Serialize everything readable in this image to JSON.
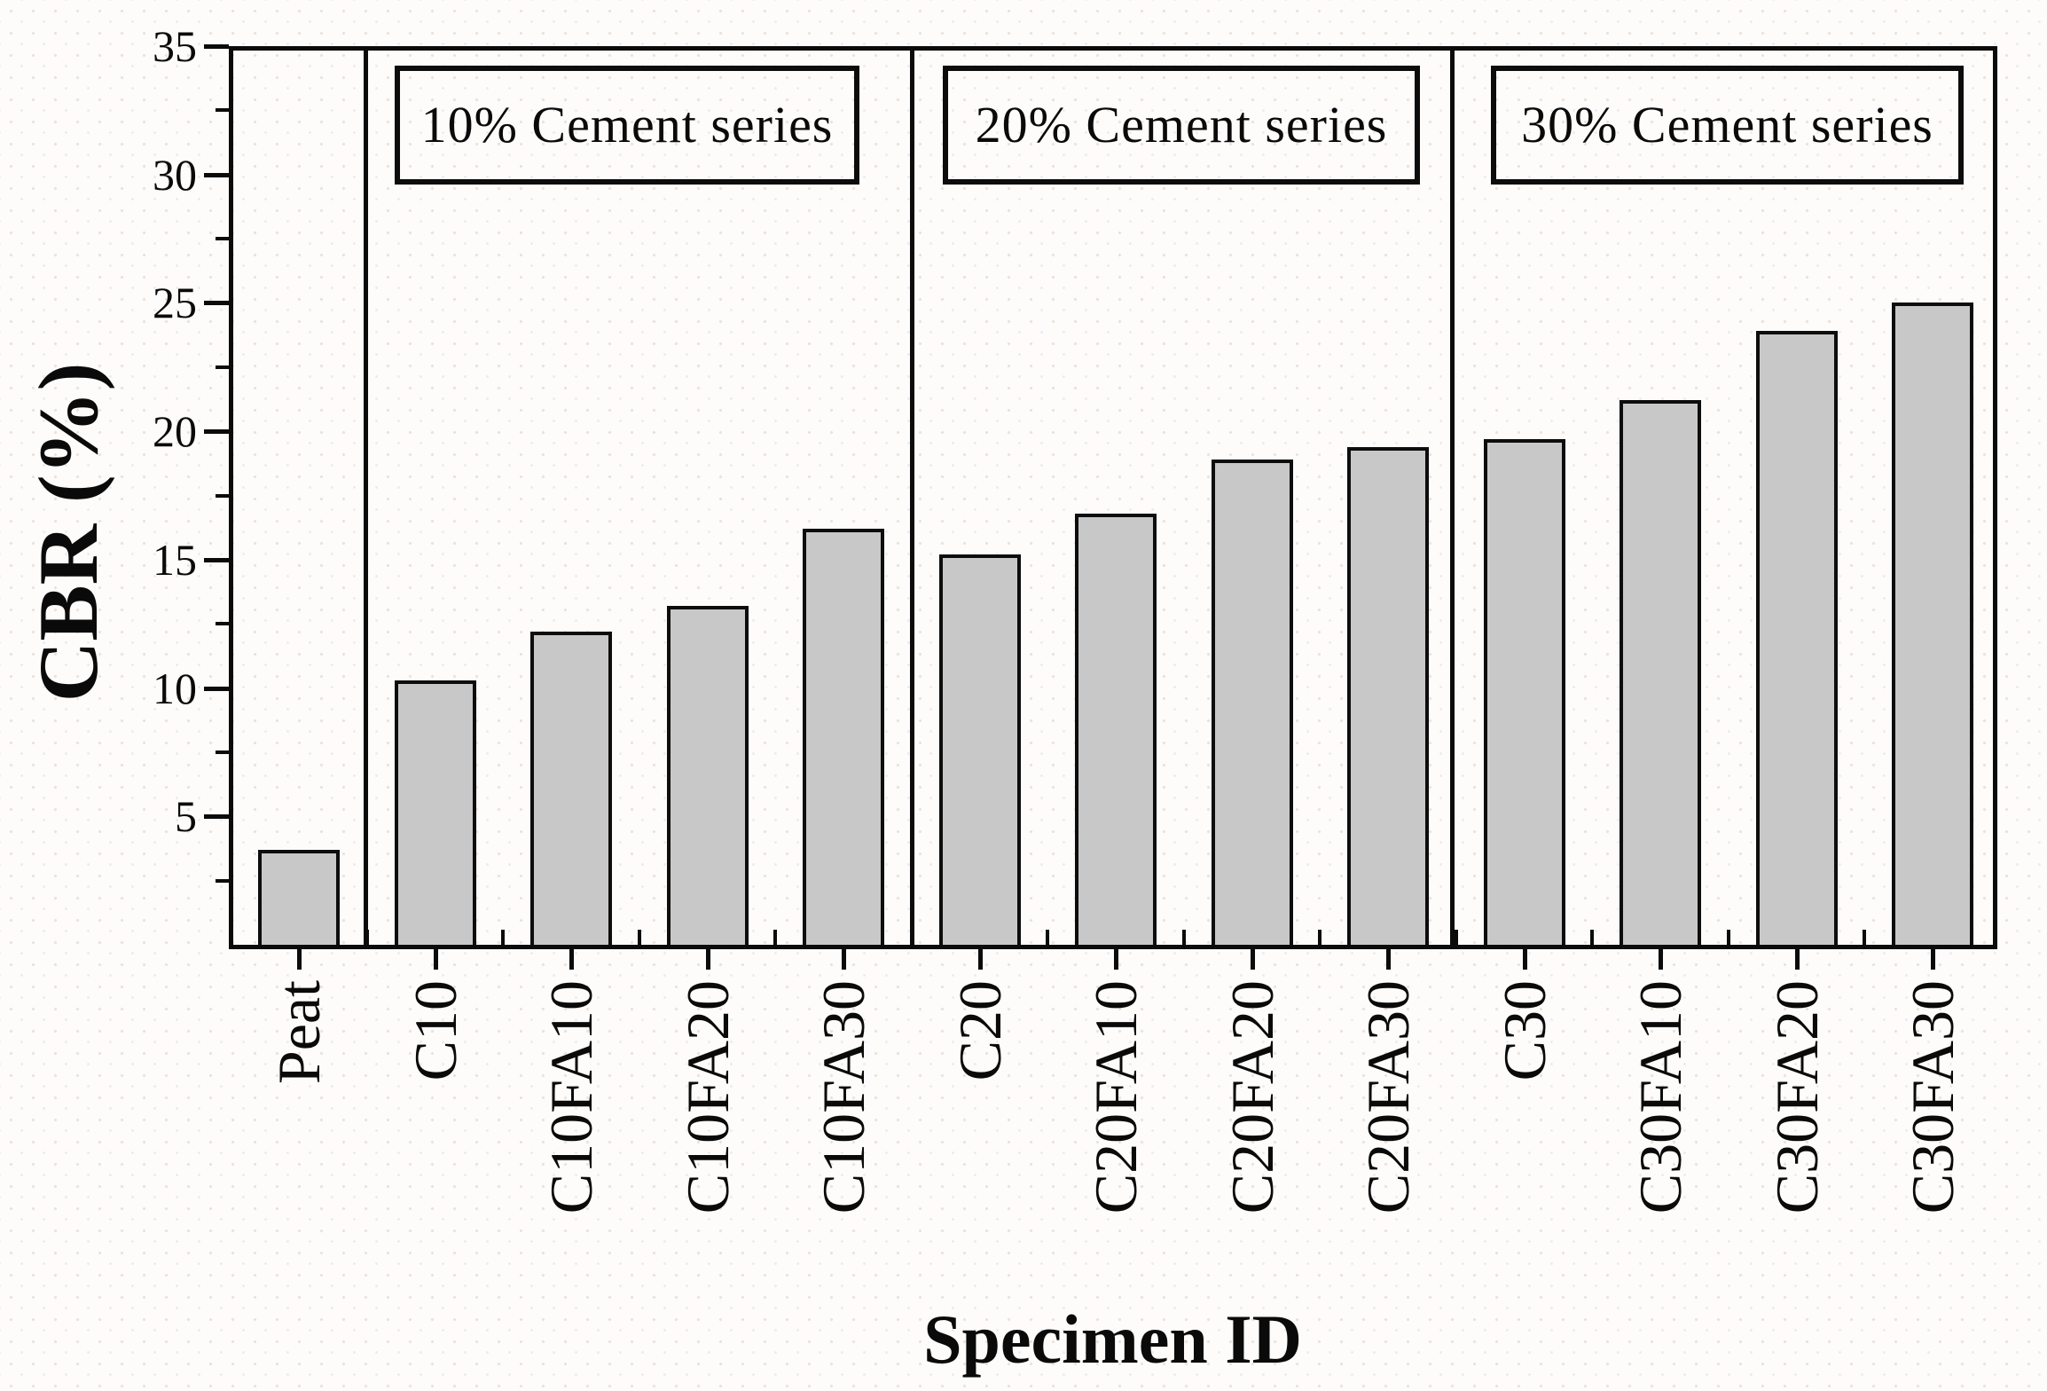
{
  "figure": {
    "kind": "bar chart figure",
    "background_color": "#fdfcfb",
    "axis_color": "#0b0b0b"
  },
  "chart_data": {
    "type": "bar",
    "title": "",
    "xlabel": "Specimen ID",
    "ylabel": "CBR (%)",
    "ylim": [
      0,
      35
    ],
    "y_major_ticks": [
      5,
      10,
      15,
      20,
      25,
      30,
      35
    ],
    "y_minor_tick_step": 2.5,
    "grid": false,
    "legend": "none",
    "categories": [
      "Peat",
      "C10",
      "C10FA10",
      "C10FA20",
      "C10FA30",
      "C20",
      "C20FA10",
      "C20FA20",
      "C20FA30",
      "C30",
      "C30FA10",
      "C30FA20",
      "C30FA30"
    ],
    "values": [
      3.7,
      10.3,
      12.2,
      13.2,
      16.2,
      15.2,
      16.8,
      18.9,
      19.4,
      19.7,
      21.2,
      23.9,
      25.0
    ],
    "groups": [
      {
        "label": "10% Cement series",
        "categories": [
          "C10",
          "C10FA10",
          "C10FA20",
          "C10FA30"
        ]
      },
      {
        "label": "20% Cement series",
        "categories": [
          "C20",
          "C20FA10",
          "C20FA20",
          "C20FA30"
        ]
      },
      {
        "label": "30% Cement series",
        "categories": [
          "C30",
          "C30FA10",
          "C30FA20",
          "C30FA30"
        ]
      }
    ],
    "bar_fill_color": "#c8c8c8",
    "bar_border_color": "#0d0d0d"
  }
}
